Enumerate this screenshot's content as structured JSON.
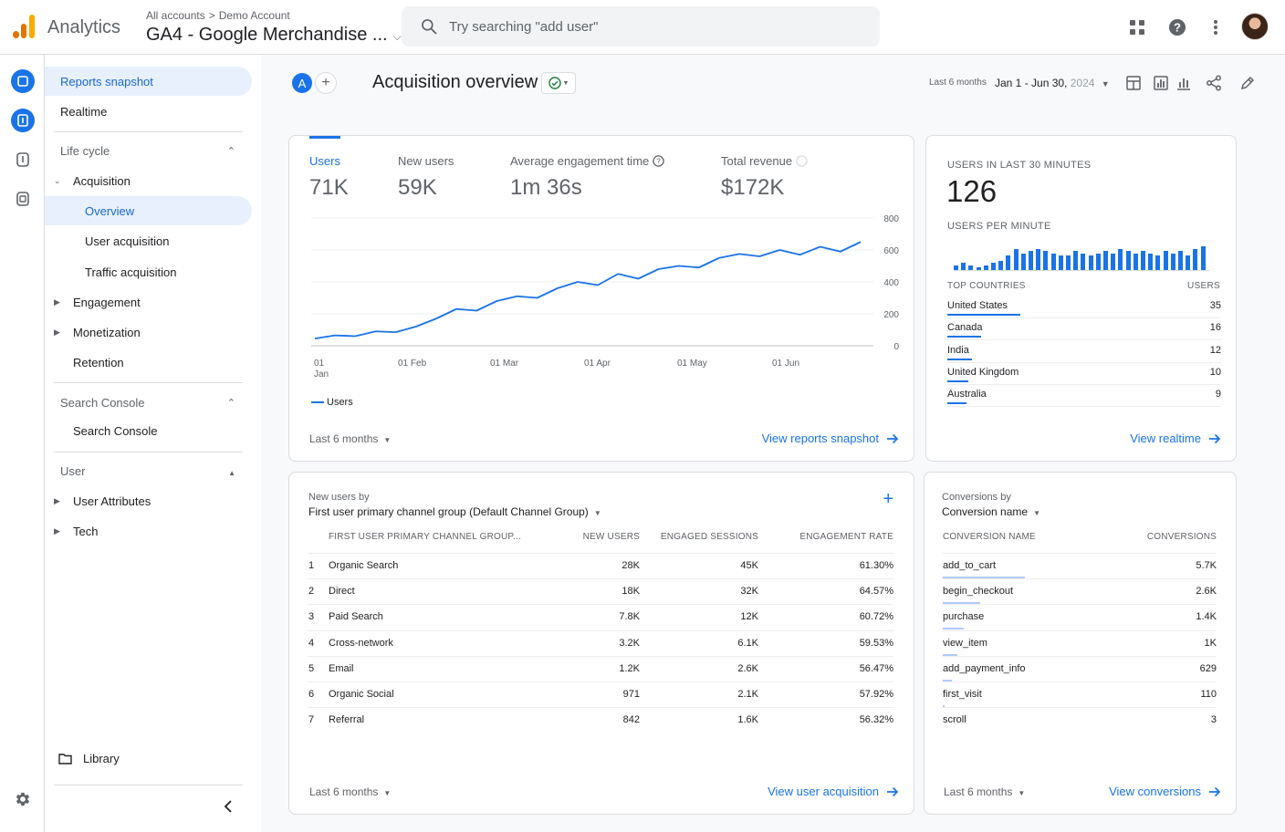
{
  "app": {
    "brand": "Analytics",
    "breadcrumb": [
      "All accounts",
      "Demo Account"
    ],
    "breadcrumb_sep": ">",
    "property_name": "GA4 - Google Merchandise ...",
    "search_placeholder": "Try searching \"add user\""
  },
  "nav": {
    "reports_snapshot": "Reports snapshot",
    "realtime": "Realtime",
    "life_cycle": "Life cycle",
    "acquisition": "Acquisition",
    "overview": "Overview",
    "user_acquisition": "User acquisition",
    "traffic_acquisition": "Traffic acquisition",
    "engagement": "Engagement",
    "monetization": "Monetization",
    "retention": "Retention",
    "search_console_section": "Search Console",
    "search_console_item": "Search Console",
    "user_section": "User",
    "user_attributes": "User Attributes",
    "tech": "Tech",
    "library": "Library"
  },
  "header": {
    "compare_avatar": "A",
    "title": "Acquisition overview",
    "date_preset": "Last 6 months",
    "date_range": "Jan 1 - Jun 30,",
    "date_year": "2024"
  },
  "overview_card": {
    "metrics": [
      {
        "label": "Users",
        "value": "71K"
      },
      {
        "label": "New users",
        "value": "59K"
      },
      {
        "label": "Average engagement time",
        "value": "1m 36s"
      },
      {
        "label": "Total revenue",
        "value": "$172K"
      }
    ],
    "legend": "Users",
    "footer_range": "Last 6 months",
    "footer_link": "View reports snapshot"
  },
  "chart_data": {
    "type": "line",
    "series": [
      {
        "name": "Users",
        "values": [
          45,
          65,
          60,
          90,
          85,
          120,
          170,
          230,
          220,
          280,
          310,
          300,
          360,
          400,
          380,
          450,
          420,
          480,
          500,
          490,
          550,
          575,
          560,
          600,
          570,
          620,
          590,
          650
        ]
      }
    ],
    "y_ticks": [
      "800",
      "600",
      "400",
      "200",
      "0"
    ],
    "ylim": [
      0,
      800
    ],
    "x_labels": [
      "01 Jan",
      "01 Feb",
      "01 Mar",
      "01 Apr",
      "01 May",
      "01 Jun"
    ],
    "color": "#1a73e8"
  },
  "realtime_card": {
    "title": "USERS IN LAST 30 MINUTES",
    "count": "126",
    "per_minute_label": "USERS PER MINUTE",
    "per_minute": [
      2,
      3,
      2,
      1,
      2,
      3,
      4,
      6,
      9,
      7,
      8,
      9,
      8,
      7,
      6,
      6,
      8,
      7,
      6,
      7,
      8,
      7,
      9,
      8,
      7,
      8,
      7,
      6,
      8,
      7,
      8,
      6,
      9,
      10
    ],
    "col_country": "TOP COUNTRIES",
    "col_users": "USERS",
    "countries": [
      {
        "name": "United States",
        "users": "35",
        "share": 1.0
      },
      {
        "name": "Canada",
        "users": "16",
        "share": 0.46
      },
      {
        "name": "India",
        "users": "12",
        "share": 0.34
      },
      {
        "name": "United Kingdom",
        "users": "10",
        "share": 0.29
      },
      {
        "name": "Australia",
        "users": "9",
        "share": 0.26
      }
    ],
    "footer_link": "View realtime"
  },
  "new_users_card": {
    "subtitle": "New users by",
    "dimension": "First user primary channel group (Default Channel Group)",
    "columns": [
      "FIRST USER PRIMARY CHANNEL GROUP...",
      "NEW USERS",
      "ENGAGED SESSIONS",
      "ENGAGEMENT RATE"
    ],
    "rows": [
      {
        "rank": "1",
        "channel": "Organic Search",
        "new_users": "28K",
        "sessions": "45K",
        "rate": "61.30%"
      },
      {
        "rank": "2",
        "channel": "Direct",
        "new_users": "18K",
        "sessions": "32K",
        "rate": "64.57%"
      },
      {
        "rank": "3",
        "channel": "Paid Search",
        "new_users": "7.8K",
        "sessions": "12K",
        "rate": "60.72%"
      },
      {
        "rank": "4",
        "channel": "Cross-network",
        "new_users": "3.2K",
        "sessions": "6.1K",
        "rate": "59.53%"
      },
      {
        "rank": "5",
        "channel": "Email",
        "new_users": "1.2K",
        "sessions": "2.6K",
        "rate": "56.47%"
      },
      {
        "rank": "6",
        "channel": "Organic Social",
        "new_users": "971",
        "sessions": "2.1K",
        "rate": "57.92%"
      },
      {
        "rank": "7",
        "channel": "Referral",
        "new_users": "842",
        "sessions": "1.6K",
        "rate": "56.32%"
      }
    ],
    "footer_range": "Last 6 months",
    "footer_link": "View user acquisition"
  },
  "conversions_card": {
    "subtitle": "Conversions by",
    "dimension": "Conversion name",
    "columns": [
      "CONVERSION NAME",
      "CONVERSIONS"
    ],
    "rows": [
      {
        "name": "add_to_cart",
        "value": "5.7K",
        "share": 1.0
      },
      {
        "name": "begin_checkout",
        "value": "2.6K",
        "share": 0.46
      },
      {
        "name": "purchase",
        "value": "1.4K",
        "share": 0.25
      },
      {
        "name": "view_item",
        "value": "1K",
        "share": 0.18
      },
      {
        "name": "add_payment_info",
        "value": "629",
        "share": 0.11
      },
      {
        "name": "first_visit",
        "value": "110",
        "share": 0.02
      },
      {
        "name": "scroll",
        "value": "3",
        "share": 0.0
      }
    ],
    "footer_range": "Last 6 months",
    "footer_link": "View conversions"
  }
}
